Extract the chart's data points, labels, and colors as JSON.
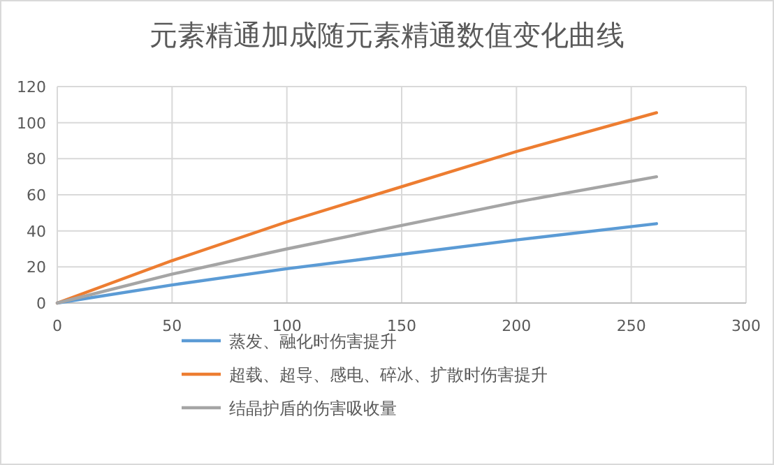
{
  "chart_data": {
    "type": "line",
    "title": "元素精通加成随元素精通数值变化曲线",
    "x": [
      0,
      50,
      100,
      150,
      200,
      261
    ],
    "series": [
      {
        "name": "蒸发、融化时伤害提升",
        "color": "#5b9bd5",
        "values": [
          0,
          10,
          19,
          27,
          35,
          44
        ]
      },
      {
        "name": "超载、超导、感电、碎冰、扩散时伤害提升",
        "color": "#ed7d31",
        "values": [
          0,
          23.5,
          45,
          64.5,
          84,
          105.5
        ]
      },
      {
        "name": "结晶护盾的伤害吸收量",
        "color": "#a5a5a5",
        "values": [
          0,
          16,
          30,
          43,
          56,
          70
        ]
      }
    ],
    "xlim": [
      0,
      300
    ],
    "xticks": [
      0,
      50,
      100,
      150,
      200,
      250,
      300
    ],
    "ylim": [
      0,
      120
    ],
    "yticks": [
      0,
      20,
      40,
      60,
      80,
      100,
      120
    ],
    "grid": true,
    "legend": "bottom",
    "marker": "none",
    "line_style": "solid"
  }
}
